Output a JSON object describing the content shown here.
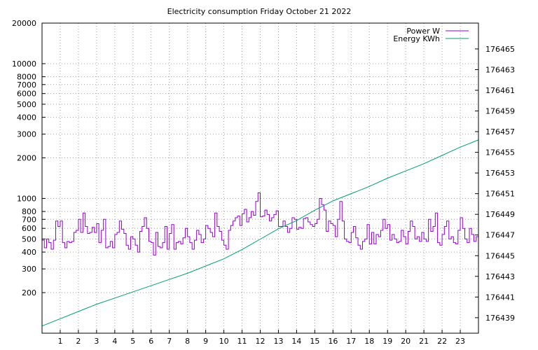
{
  "chart_data": {
    "type": "line",
    "title": "Electricity consumption Friday October 21 2022",
    "xlabel": "",
    "ylabel": "",
    "y2label": "",
    "xlim": [
      0,
      24
    ],
    "x_ticks": [
      1,
      2,
      3,
      4,
      5,
      6,
      7,
      8,
      9,
      10,
      11,
      12,
      13,
      14,
      15,
      16,
      17,
      18,
      19,
      20,
      21,
      22,
      23
    ],
    "ylim": [
      100,
      20000
    ],
    "y_scale": "log",
    "y_ticks": [
      200,
      300,
      400,
      500,
      600,
      700,
      800,
      1000,
      2000,
      3000,
      4000,
      5000,
      6000,
      7000,
      8000,
      10000,
      20000
    ],
    "y2lim": [
      176437.5,
      176467.5
    ],
    "y2_ticks": [
      176439,
      176441,
      176443,
      176445,
      176447,
      176449,
      176451,
      176453,
      176455,
      176457,
      176459,
      176461,
      176463,
      176465
    ],
    "grid": true,
    "legend_position": "top-right",
    "series": [
      {
        "name": "Power W",
        "axis": "y1",
        "color": "#9400d3",
        "step": true,
        "x": [
          0,
          0.125,
          0.25,
          0.375,
          0.5,
          0.625,
          0.75,
          0.875,
          1,
          1.125,
          1.25,
          1.375,
          1.5,
          1.625,
          1.75,
          1.875,
          2,
          2.125,
          2.25,
          2.375,
          2.5,
          2.625,
          2.75,
          2.875,
          3,
          3.125,
          3.25,
          3.375,
          3.5,
          3.625,
          3.75,
          3.875,
          4,
          4.125,
          4.25,
          4.375,
          4.5,
          4.625,
          4.75,
          4.875,
          5,
          5.125,
          5.25,
          5.375,
          5.5,
          5.625,
          5.75,
          5.875,
          6,
          6.125,
          6.25,
          6.375,
          6.5,
          6.625,
          6.75,
          6.875,
          7,
          7.125,
          7.25,
          7.375,
          7.5,
          7.625,
          7.75,
          7.875,
          8,
          8.125,
          8.25,
          8.375,
          8.5,
          8.625,
          8.75,
          8.875,
          9,
          9.125,
          9.25,
          9.375,
          9.5,
          9.625,
          9.75,
          9.875,
          10,
          10.125,
          10.25,
          10.375,
          10.5,
          10.625,
          10.75,
          10.875,
          11,
          11.125,
          11.25,
          11.375,
          11.5,
          11.625,
          11.75,
          11.875,
          12,
          12.125,
          12.25,
          12.375,
          12.5,
          12.625,
          12.75,
          12.875,
          13,
          13.125,
          13.25,
          13.375,
          13.5,
          13.625,
          13.75,
          13.875,
          14,
          14.125,
          14.25,
          14.375,
          14.5,
          14.625,
          14.75,
          14.875,
          15,
          15.125,
          15.25,
          15.375,
          15.5,
          15.625,
          15.75,
          15.875,
          16,
          16.125,
          16.25,
          16.375,
          16.5,
          16.625,
          16.75,
          16.875,
          17,
          17.125,
          17.25,
          17.375,
          17.5,
          17.625,
          17.75,
          17.875,
          18,
          18.125,
          18.25,
          18.375,
          18.5,
          18.625,
          18.75,
          18.875,
          19,
          19.125,
          19.25,
          19.375,
          19.5,
          19.625,
          19.75,
          19.875,
          20,
          20.125,
          20.25,
          20.375,
          20.5,
          20.625,
          20.75,
          20.875,
          21,
          21.125,
          21.25,
          21.375,
          21.5,
          21.625,
          21.75,
          21.875,
          22,
          22.125,
          22.25,
          22.375,
          22.5,
          22.625,
          22.75,
          22.875,
          23,
          23.125,
          23.25,
          23.375,
          23.5,
          23.625,
          23.75,
          23.875
        ],
        "values": [
          490,
          430,
          500,
          470,
          420,
          490,
          680,
          620,
          680,
          470,
          430,
          480,
          470,
          480,
          560,
          580,
          700,
          560,
          780,
          620,
          550,
          560,
          610,
          560,
          650,
          470,
          580,
          700,
          430,
          440,
          480,
          430,
          540,
          560,
          680,
          590,
          550,
          450,
          420,
          520,
          500,
          450,
          400,
          570,
          620,
          720,
          600,
          480,
          470,
          380,
          560,
          440,
          430,
          470,
          620,
          420,
          550,
          640,
          420,
          470,
          480,
          460,
          510,
          600,
          520,
          470,
          420,
          490,
          580,
          540,
          470,
          500,
          630,
          600,
          560,
          520,
          780,
          620,
          570,
          490,
          450,
          420,
          580,
          630,
          680,
          720,
          740,
          630,
          770,
          830,
          670,
          720,
          800,
          750,
          950,
          1100,
          730,
          740,
          820,
          760,
          680,
          720,
          760,
          810,
          620,
          620,
          680,
          620,
          560,
          600,
          720,
          700,
          590,
          610,
          600,
          710,
          720,
          670,
          640,
          620,
          650,
          700,
          1000,
          900,
          820,
          570,
          680,
          650,
          630,
          520,
          700,
          950,
          680,
          500,
          480,
          470,
          560,
          620,
          510,
          450,
          420,
          480,
          500,
          640,
          460,
          560,
          460,
          540,
          520,
          580,
          700,
          600,
          640,
          490,
          540,
          500,
          470,
          480,
          580,
          520,
          460,
          570,
          680,
          620,
          500,
          520,
          480,
          560,
          500,
          480,
          700,
          570,
          620,
          780,
          470,
          450,
          540,
          620,
          680,
          500,
          520,
          470,
          460,
          580,
          720,
          600,
          500,
          470,
          600,
          540,
          480,
          520
        ]
      },
      {
        "name": "Energy KWh",
        "axis": "y2",
        "color": "#009e73",
        "x": [
          0,
          1,
          2,
          3,
          4,
          5,
          6,
          7,
          8,
          9,
          10,
          11,
          12,
          13,
          14,
          15,
          16,
          17,
          18,
          19,
          20,
          21,
          22,
          23,
          24
        ],
        "values": [
          176438.2,
          176438.9,
          176439.6,
          176440.3,
          176440.9,
          176441.5,
          176442.1,
          176442.7,
          176443.3,
          176444.0,
          176444.7,
          176445.6,
          176446.6,
          176447.6,
          176448.4,
          176449.4,
          176450.3,
          176451.0,
          176451.7,
          176452.5,
          176453.2,
          176453.9,
          176454.7,
          176455.5,
          176456.2
        ]
      }
    ]
  }
}
